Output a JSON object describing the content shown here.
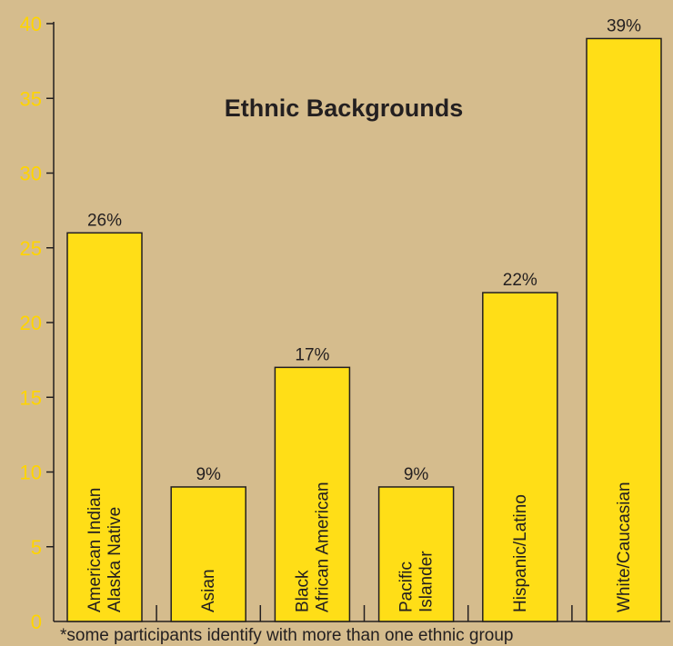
{
  "chart_data": {
    "type": "bar",
    "title": "Ethnic Backgrounds",
    "categories": [
      [
        "American Indian",
        "Alaska Native"
      ],
      [
        "Asian"
      ],
      [
        "Black",
        "African American"
      ],
      [
        "Pacific",
        "Islander"
      ],
      [
        "Hispanic/Latino"
      ],
      [
        "White/Caucasian"
      ]
    ],
    "values": [
      26,
      9,
      17,
      9,
      22,
      39
    ],
    "data_labels": [
      "26%",
      "9%",
      "17%",
      "9%",
      "22%",
      "39%"
    ],
    "ylim": [
      0,
      40
    ],
    "yticks": [
      0,
      5,
      10,
      15,
      20,
      25,
      30,
      35,
      40
    ],
    "xlabel": "",
    "ylabel": "",
    "grid": false,
    "footnote": "*some participants identify with more than one ethnic group",
    "colors": {
      "background": "#d5bc8d",
      "bar_fill": "#ffde17",
      "bar_stroke": "#231f20",
      "tick_label": "#ffd400",
      "text": "#231f20"
    }
  }
}
